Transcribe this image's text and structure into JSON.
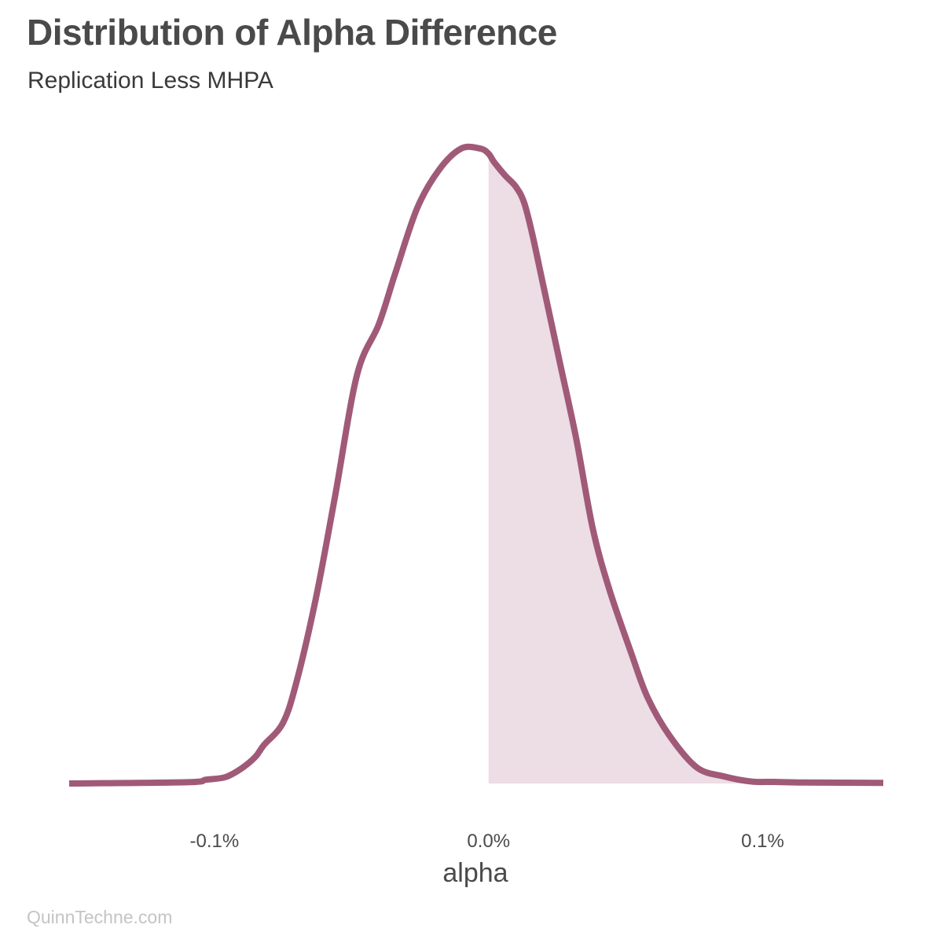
{
  "chart_data": {
    "type": "area",
    "title": "Distribution of Alpha Difference",
    "subtitle": "Replication Less MHPA",
    "xlabel": "alpha",
    "ylabel": "",
    "x_tick_labels": [
      "-0.1%",
      "0.0%",
      "0.1%"
    ],
    "x_ticks": [
      -0.001,
      0.0,
      0.001
    ],
    "xlim": [
      -0.00153,
      0.00144
    ],
    "ylim": [
      0,
      1.0
    ],
    "shade_from": 0.0,
    "grid": false,
    "legend": "none",
    "line_color": "#a05a78",
    "fill_color": "#eddde4",
    "series": [
      {
        "x": [
          -0.00153,
          -0.0011,
          -0.00103,
          -0.00096,
          -0.0009,
          -0.00085,
          -0.00082,
          -0.00075,
          -0.0007,
          -0.00063,
          -0.00056,
          -0.00048,
          -0.0004,
          -0.00034,
          -0.00026,
          -0.00018,
          -0.0001,
          -3e-05,
          0.0,
          2e-05,
          6e-05,
          0.0001,
          0.00013,
          0.00016,
          0.0002,
          0.00026,
          0.00032,
          0.00038,
          0.00044,
          0.00052,
          0.00058,
          0.00066,
          0.00076,
          0.00086,
          0.00096,
          0.00104,
          0.00115,
          0.00144
        ],
        "y": [
          0.0,
          0.002,
          0.006,
          0.01,
          0.024,
          0.042,
          0.06,
          0.095,
          0.16,
          0.29,
          0.45,
          0.64,
          0.72,
          0.8,
          0.902,
          0.962,
          0.995,
          0.995,
          0.987,
          0.974,
          0.953,
          0.935,
          0.91,
          0.86,
          0.78,
          0.66,
          0.54,
          0.4,
          0.305,
          0.205,
          0.135,
          0.075,
          0.025,
          0.011,
          0.003,
          0.0025,
          0.0015,
          0.001
        ]
      }
    ]
  },
  "watermark": "QuinnTechne.com"
}
